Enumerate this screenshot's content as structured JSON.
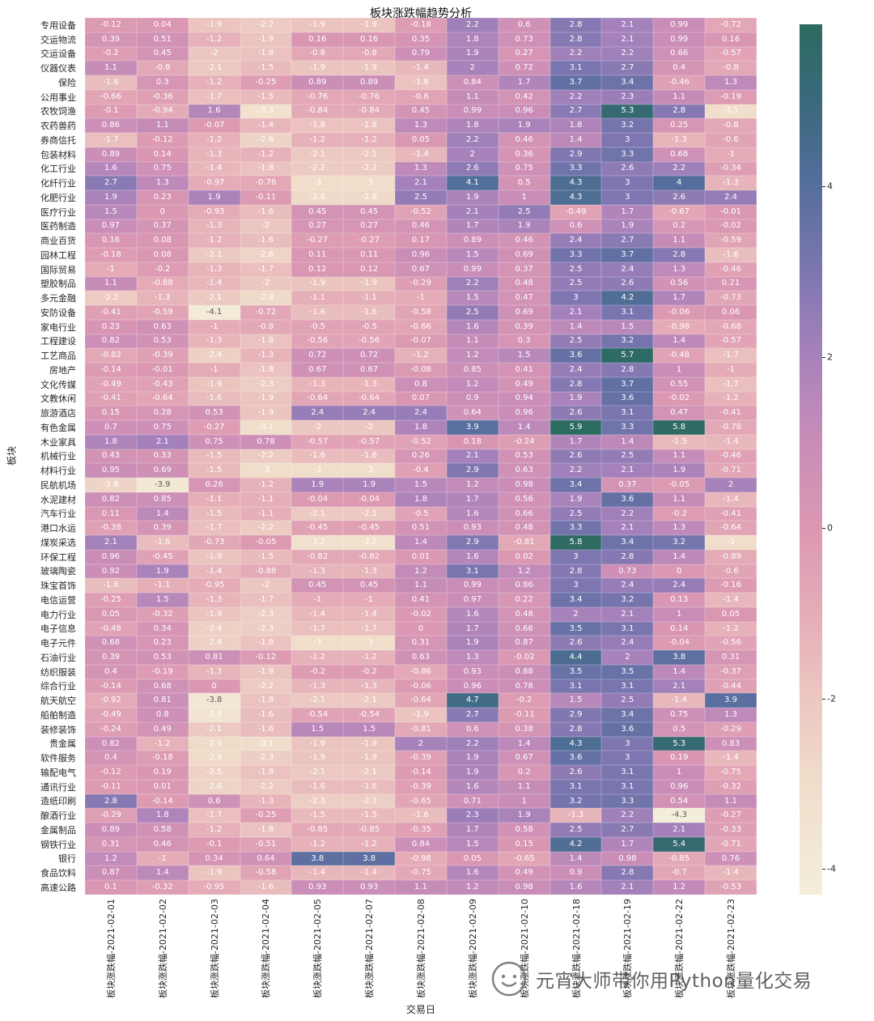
{
  "watermark": {
    "text": "元宵大师带你用Python量化交易"
  },
  "chart_data": {
    "type": "heatmap",
    "title": "板块涨跌幅趋势分析",
    "xlabel": "交易日",
    "ylabel": "板块",
    "legend": "none",
    "grid": false,
    "colorbar_position": "right",
    "vmin": -4.3,
    "vmax": 5.9,
    "colorbar_ticks": [
      4,
      2,
      0,
      -2,
      -4
    ],
    "colormap_stops": [
      {
        "v": -4.3,
        "c": "#f3eeda"
      },
      {
        "v": -3.0,
        "c": "#f0ddca"
      },
      {
        "v": -2.0,
        "c": "#ecc7c1"
      },
      {
        "v": -1.0,
        "c": "#e5acb7"
      },
      {
        "v": 0.0,
        "c": "#db98b2"
      },
      {
        "v": 1.0,
        "c": "#c98db8"
      },
      {
        "v": 2.0,
        "c": "#a882bb"
      },
      {
        "v": 3.0,
        "c": "#7d76b0"
      },
      {
        "v": 4.0,
        "c": "#556e9d"
      },
      {
        "v": 5.0,
        "c": "#3a697c"
      },
      {
        "v": 5.9,
        "c": "#2c6b60"
      }
    ],
    "x_labels": [
      "板块涨跌幅-2021-02-01",
      "板块涨跌幅-2021-02-02",
      "板块涨跌幅-2021-02-03",
      "板块涨跌幅-2021-02-04",
      "板块涨跌幅-2021-02-05",
      "板块涨跌幅-2021-02-07",
      "板块涨跌幅-2021-02-08",
      "板块涨跌幅-2021-02-09",
      "板块涨跌幅-2021-02-10",
      "板块涨跌幅-2021-02-18",
      "板块涨跌幅-2021-02-19",
      "板块涨跌幅-2021-02-22",
      "板块涨跌幅-2021-02-23"
    ],
    "y_labels": [
      "专用设备",
      "交运物流",
      "交运设备",
      "仪器仪表",
      "保险",
      "公用事业",
      "农牧饲渔",
      "农药兽药",
      "券商信托",
      "包装材料",
      "化工行业",
      "化纤行业",
      "化肥行业",
      "医疗行业",
      "医药制造",
      "商业百货",
      "园林工程",
      "国际贸易",
      "塑胶制品",
      "多元金融",
      "安防设备",
      "家电行业",
      "工程建设",
      "工艺商品",
      "房地产",
      "文化传媒",
      "文教休闲",
      "旅游酒店",
      "有色金属",
      "木业家具",
      "机械行业",
      "材料行业",
      "民航机场",
      "水泥建材",
      "汽车行业",
      "港口水运",
      "煤炭采选",
      "环保工程",
      "玻璃陶瓷",
      "珠宝首饰",
      "电信运营",
      "电力行业",
      "电子信息",
      "电子元件",
      "石油行业",
      "纺织服装",
      "综合行业",
      "航天航空",
      "船舶制造",
      "装修装饰",
      "贵金属",
      "软件服务",
      "输配电气",
      "通讯行业",
      "造纸印刷",
      "酿酒行业",
      "金属制品",
      "钢铁行业",
      "银行",
      "食品饮料",
      "高速公路"
    ],
    "values": [
      [
        -0.12,
        0.04,
        -1.9,
        -2.2,
        -1.9,
        -1.9,
        -0.18,
        2.2,
        0.6,
        2.8,
        2.1,
        0.99,
        -0.72
      ],
      [
        0.39,
        0.51,
        -1.2,
        -1.9,
        0.16,
        0.16,
        0.35,
        1.8,
        0.73,
        2.8,
        2.1,
        0.99,
        0.16
      ],
      [
        -0.2,
        0.45,
        -2,
        -1.8,
        -0.8,
        -0.8,
        0.79,
        1.9,
        0.27,
        2.2,
        2.2,
        0.66,
        -0.57
      ],
      [
        1.1,
        -0.8,
        -2.1,
        -1.5,
        -1.9,
        -1.9,
        -1.4,
        2,
        0.72,
        3.1,
        2.7,
        0.4,
        -0.8
      ],
      [
        -1.6,
        0.3,
        -1.2,
        -0.25,
        0.89,
        0.89,
        -1.8,
        0.84,
        1.7,
        3.7,
        3.4,
        -0.46,
        1.3
      ],
      [
        -0.66,
        -0.36,
        -1.7,
        -1.5,
        -0.76,
        -0.76,
        -0.6,
        1.1,
        0.42,
        2.2,
        2.3,
        1.1,
        -0.19
      ],
      [
        -0.1,
        -0.94,
        1.6,
        -3.3,
        -0.84,
        -0.84,
        0.45,
        0.99,
        0.96,
        2.7,
        5.3,
        2.8,
        -3.1
      ],
      [
        0.86,
        1.1,
        -0.07,
        -1.4,
        -1.8,
        -1.8,
        1.3,
        1.8,
        1.9,
        1.8,
        3.2,
        0.25,
        -0.8
      ],
      [
        -1.7,
        -0.12,
        -1.2,
        -2.6,
        -1.2,
        -1.2,
        0.05,
        2.2,
        0.46,
        1.4,
        3,
        -1.3,
        -0.6
      ],
      [
        0.89,
        0.14,
        -1.3,
        -1.2,
        -2.1,
        -2.1,
        -1.4,
        2,
        0.36,
        2.9,
        3.3,
        0.68,
        -1
      ],
      [
        1.6,
        0.75,
        -1.4,
        -1.8,
        -2.2,
        -2.2,
        1.3,
        2.6,
        0.75,
        3.3,
        2.6,
        2.2,
        -0.34
      ],
      [
        2.7,
        1.3,
        -0.97,
        -0.76,
        -3,
        -3,
        2.1,
        4.1,
        0.5,
        4.3,
        3,
        4,
        -1.3
      ],
      [
        1.9,
        0.23,
        1.9,
        -0.11,
        -2.8,
        -2.8,
        2.5,
        1.9,
        1,
        4.3,
        3,
        2.6,
        2.4
      ],
      [
        1.5,
        0,
        -0.93,
        -1.6,
        0.45,
        0.45,
        -0.52,
        2.1,
        2.5,
        -0.49,
        1.7,
        -0.67,
        -0.01
      ],
      [
        0.97,
        0.37,
        -1.3,
        -2,
        0.27,
        0.27,
        0.46,
        1.7,
        1.9,
        0.6,
        1.9,
        0.2,
        -0.02
      ],
      [
        0.16,
        0.08,
        -1.2,
        -1.6,
        -0.27,
        -0.27,
        0.17,
        0.89,
        0.46,
        2.4,
        2.7,
        1.1,
        -0.59
      ],
      [
        -0.18,
        0.08,
        -2.1,
        -2.6,
        0.11,
        0.11,
        0.96,
        1.5,
        0.69,
        3.3,
        3.7,
        2.8,
        -1.6
      ],
      [
        -1,
        -0.2,
        -1.3,
        -1.7,
        0.12,
        0.12,
        0.67,
        0.99,
        0.37,
        2.5,
        2.4,
        1.3,
        -0.46
      ],
      [
        1.1,
        -0.88,
        -1.4,
        -2,
        -1.9,
        -1.9,
        -0.29,
        2.2,
        0.48,
        2.5,
        2.6,
        0.56,
        0.21
      ],
      [
        -2.2,
        -1.3,
        -2.1,
        -2.8,
        -1.1,
        -1.1,
        -1,
        1.5,
        0.47,
        3,
        4.2,
        1.7,
        -0.73
      ],
      [
        -0.41,
        -0.59,
        -4.1,
        -0.72,
        -1.6,
        -1.6,
        -0.58,
        2.5,
        0.69,
        2.1,
        3.1,
        -0.06,
        0.06
      ],
      [
        0.23,
        0.63,
        -1,
        -0.8,
        -0.5,
        -0.5,
        -0.66,
        1.6,
        0.39,
        1.4,
        1.5,
        -0.98,
        -0.68
      ],
      [
        0.82,
        0.53,
        -1.3,
        -1.8,
        -0.56,
        -0.56,
        -0.07,
        1.1,
        0.3,
        2.5,
        3.2,
        1.4,
        -0.57
      ],
      [
        -0.82,
        -0.39,
        -2.4,
        -1.3,
        0.72,
        0.72,
        -1.2,
        1.2,
        1.5,
        3.6,
        5.7,
        -0.48,
        -1.7
      ],
      [
        -0.14,
        -0.01,
        -1,
        -1.8,
        0.67,
        0.67,
        -0.08,
        0.85,
        0.41,
        2.4,
        2.8,
        1,
        -1
      ],
      [
        -0.49,
        -0.43,
        -1.9,
        -2.3,
        -1.3,
        -1.3,
        0.8,
        1.2,
        0.49,
        2.8,
        3.7,
        0.55,
        -1.7
      ],
      [
        -0.41,
        -0.64,
        -1.6,
        -1.9,
        -0.64,
        -0.64,
        0.07,
        0.9,
        0.94,
        1.9,
        3.6,
        -0.02,
        -1.2
      ],
      [
        0.15,
        0.28,
        0.53,
        -1.9,
        2.4,
        2.4,
        2.4,
        0.64,
        0.96,
        2.6,
        3.1,
        0.47,
        -0.41
      ],
      [
        0.7,
        0.75,
        -0.27,
        -3.1,
        -2,
        -2,
        1.8,
        3.9,
        1.4,
        5.9,
        3.3,
        5.8,
        -0.78
      ],
      [
        1.8,
        2.1,
        0.75,
        0.78,
        -0.57,
        -0.57,
        -0.52,
        0.18,
        -0.24,
        1.7,
        1.4,
        -1.5,
        -1.4
      ],
      [
        0.43,
        0.33,
        -1.5,
        -2.2,
        -1.6,
        -1.6,
        0.26,
        2.1,
        0.53,
        2.6,
        2.5,
        1.1,
        -0.46
      ],
      [
        0.95,
        0.69,
        -1.5,
        -3,
        -3,
        -3,
        -0.4,
        2.9,
        0.63,
        2.2,
        2.1,
        1.9,
        -0.71
      ],
      [
        -2.6,
        -3.9,
        0.26,
        -1.2,
        1.9,
        1.9,
        1.5,
        1.2,
        0.98,
        3.4,
        0.37,
        -0.05,
        2
      ],
      [
        0.82,
        0.85,
        -1.1,
        -1.1,
        -0.04,
        -0.04,
        1.8,
        1.7,
        0.56,
        1.9,
        3.6,
        1.1,
        -1.4
      ],
      [
        0.11,
        1.4,
        -1.5,
        -1.1,
        -2.1,
        -2.1,
        -0.5,
        1.6,
        0.66,
        2.5,
        2.2,
        -0.2,
        -0.41
      ],
      [
        -0.38,
        0.39,
        -1.7,
        -2.2,
        -0.45,
        -0.45,
        0.51,
        0.93,
        0.48,
        3.3,
        2.1,
        1.3,
        -0.64
      ],
      [
        2.1,
        -1.6,
        -0.73,
        -0.05,
        -3.2,
        -3.2,
        1.4,
        2.9,
        -0.81,
        5.8,
        3.4,
        3.2,
        -3
      ],
      [
        0.96,
        -0.45,
        -1.9,
        -1.5,
        -0.82,
        -0.82,
        0.01,
        1.6,
        0.02,
        3,
        2.8,
        1.4,
        -0.89
      ],
      [
        0.92,
        1.9,
        -1.4,
        -0.88,
        -1.3,
        -1.3,
        1.2,
        3.1,
        1.2,
        2.8,
        0.73,
        0,
        -0.6
      ],
      [
        -1.6,
        -1.1,
        -0.95,
        -2,
        0.45,
        0.45,
        1.1,
        0.99,
        0.86,
        3,
        2.4,
        2.4,
        -0.16
      ],
      [
        -0.25,
        1.5,
        -1.3,
        -1.7,
        -1,
        -1,
        0.41,
        0.97,
        0.22,
        3.4,
        3.2,
        0.13,
        -1.4
      ],
      [
        0.05,
        -0.32,
        -1.9,
        -2.3,
        -1.4,
        -1.4,
        -0.02,
        1.6,
        0.48,
        2,
        2.1,
        1,
        0.05
      ],
      [
        -0.48,
        0.34,
        -2.4,
        -2.3,
        -1.7,
        -1.7,
        0,
        1.7,
        0.66,
        3.5,
        3.1,
        0.14,
        -1.2
      ],
      [
        0.68,
        0.23,
        -2.4,
        -1.8,
        -3,
        -3,
        0.31,
        1.9,
        0.87,
        2.6,
        2.4,
        -0.04,
        -0.56
      ],
      [
        0.39,
        0.53,
        0.81,
        -0.12,
        -1.2,
        -1.2,
        0.63,
        1.3,
        -0.02,
        4.4,
        2,
        3.8,
        0.31
      ],
      [
        0.4,
        -0.19,
        -1.3,
        -1.9,
        -0.2,
        -0.2,
        -0.86,
        0.93,
        0.88,
        3.5,
        3.5,
        1.4,
        -0.37
      ],
      [
        -0.14,
        0.68,
        0,
        -2.2,
        -1.3,
        -1.3,
        -0.06,
        0.96,
        0.78,
        3.1,
        3.1,
        2.1,
        -0.44
      ],
      [
        -0.92,
        0.81,
        -3.8,
        -1.8,
        -2.1,
        -2.1,
        -0.64,
        4.7,
        -0.2,
        1.5,
        2.5,
        -1.4,
        3.9
      ],
      [
        -0.49,
        0.8,
        -3.5,
        -1.6,
        -0.54,
        -0.54,
        -1.9,
        2.7,
        -0.11,
        2.9,
        3.4,
        0.75,
        1.3
      ],
      [
        -0.24,
        0.49,
        -2.1,
        -1.6,
        1.5,
        1.5,
        -0.81,
        0.6,
        0.38,
        2.8,
        3.6,
        0.5,
        -0.29
      ],
      [
        0.82,
        -1.2,
        -2.9,
        -3.1,
        -1.9,
        -1.9,
        2,
        2.2,
        1.4,
        4.3,
        3,
        5.3,
        0.83
      ],
      [
        0.4,
        -0.18,
        -2.9,
        -2.3,
        -1.9,
        -1.9,
        -0.39,
        1.9,
        0.67,
        3.6,
        3,
        0.19,
        -1.4
      ],
      [
        -0.12,
        0.19,
        -2.5,
        -1.8,
        -2.1,
        -2.1,
        -0.14,
        1.9,
        0.2,
        2.6,
        3.1,
        1,
        -0.75
      ],
      [
        -0.11,
        0.01,
        -2.6,
        -2.2,
        -1.6,
        -1.6,
        -0.39,
        1.6,
        1.1,
        3.1,
        3.1,
        0.96,
        -0.32
      ],
      [
        2.8,
        -0.14,
        0.6,
        -1.3,
        -2.3,
        -2.3,
        -0.65,
        0.71,
        1,
        3.2,
        3.3,
        0.54,
        1.1
      ],
      [
        -0.29,
        1.8,
        -1.7,
        -0.25,
        -1.5,
        -1.5,
        -1.6,
        2.3,
        1.9,
        -1.3,
        2.2,
        -4.3,
        -0.27
      ],
      [
        0.89,
        0.58,
        -1.2,
        -1.8,
        -0.85,
        -0.85,
        -0.35,
        1.7,
        0.58,
        2.5,
        2.7,
        2.1,
        -0.33
      ],
      [
        0.31,
        0.46,
        -0.1,
        -0.51,
        -1.2,
        -1.2,
        0.84,
        1.5,
        0.15,
        4.2,
        1.7,
        5.4,
        -0.71
      ],
      [
        1.2,
        -1,
        0.34,
        0.64,
        3.8,
        3.8,
        -0.98,
        0.05,
        -0.65,
        1.4,
        0.98,
        -0.85,
        0.76
      ],
      [
        0.87,
        1.4,
        -1.9,
        -0.58,
        -1.4,
        -1.4,
        -0.75,
        1.6,
        0.49,
        0.9,
        2.8,
        -0.7,
        -1.4
      ],
      [
        0.1,
        -0.32,
        -0.95,
        -1.6,
        0.93,
        0.93,
        1.1,
        1.2,
        0.98,
        1.6,
        2.1,
        1.2,
        -0.53
      ]
    ]
  }
}
